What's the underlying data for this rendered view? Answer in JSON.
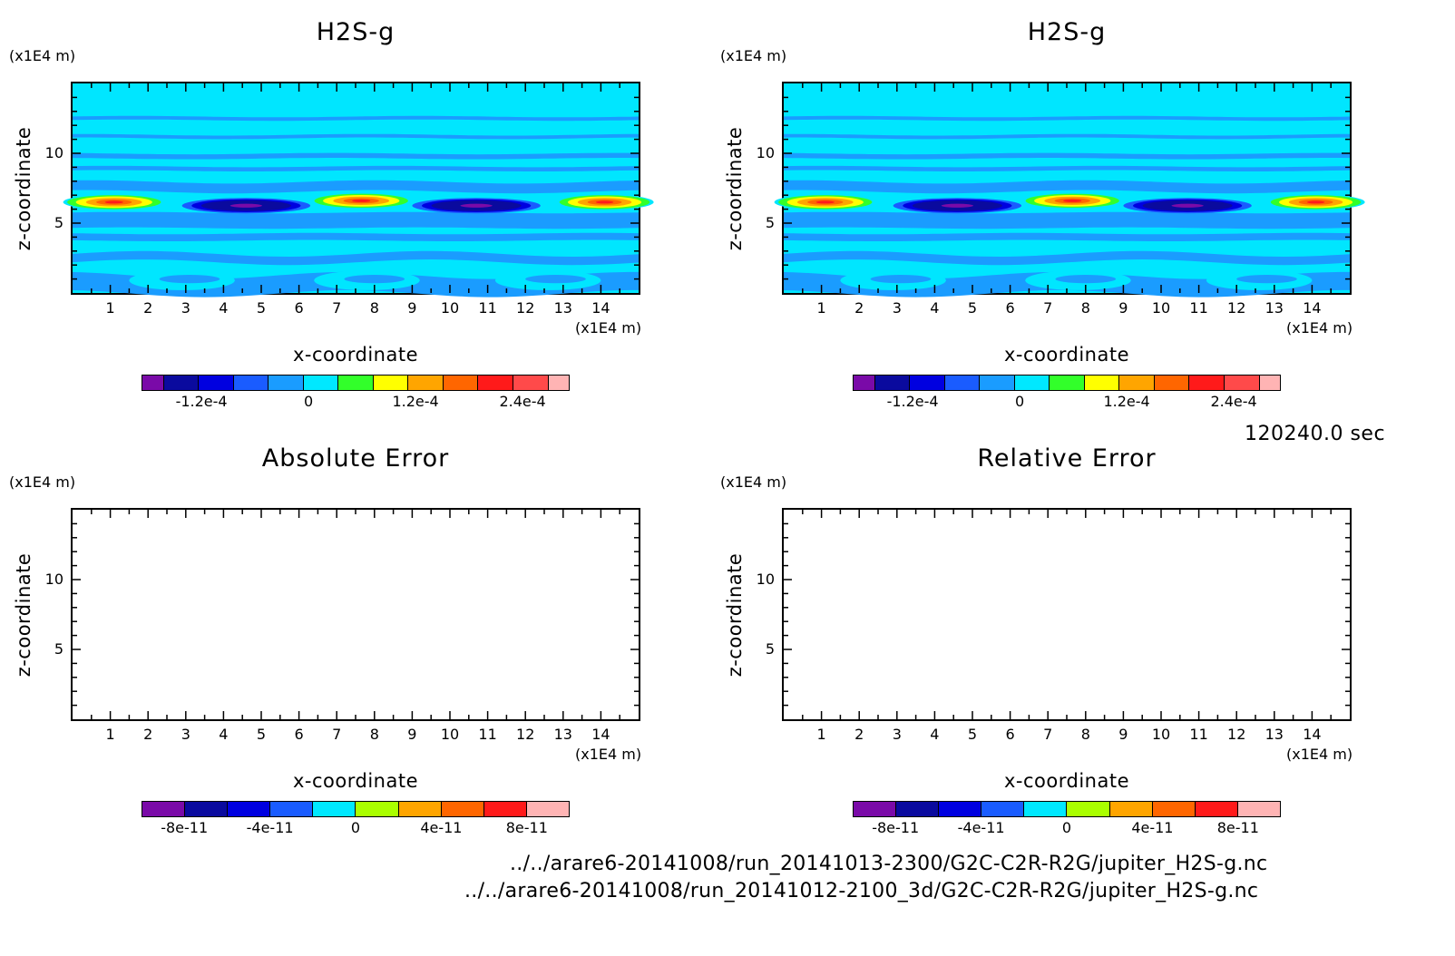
{
  "panels": [
    {
      "id": "tl",
      "title": "H2S-g",
      "zunit": "(x1E4 m)",
      "xunit": "(x1E4 m)",
      "ylabel": "z-coordinate",
      "xlabel": "x-coordinate",
      "filled": true,
      "colorbar": {
        "colors": [
          "#7a0aa8",
          "#0a0a9e",
          "#0000e0",
          "#1a5cff",
          "#1a9cff",
          "#00e8ff",
          "#32ff2a",
          "#ffff00",
          "#ffa500",
          "#ff6600",
          "#ff1a1a",
          "#ff4a4a",
          "#ffb4b4"
        ],
        "ticks": [
          "-1.2e-4",
          "0",
          "1.2e-4",
          "2.4e-4"
        ]
      }
    },
    {
      "id": "tr",
      "title": "H2S-g",
      "zunit": "(x1E4 m)",
      "xunit": "(x1E4 m)",
      "ylabel": "z-coordinate",
      "xlabel": "x-coordinate",
      "filled": true,
      "colorbar": {
        "colors": [
          "#7a0aa8",
          "#0a0a9e",
          "#0000e0",
          "#1a5cff",
          "#1a9cff",
          "#00e8ff",
          "#32ff2a",
          "#ffff00",
          "#ffa500",
          "#ff6600",
          "#ff1a1a",
          "#ff4a4a",
          "#ffb4b4"
        ],
        "ticks": [
          "-1.2e-4",
          "0",
          "1.2e-4",
          "2.4e-4"
        ]
      }
    },
    {
      "id": "bl",
      "title": "Absolute Error",
      "zunit": "(x1E4 m)",
      "xunit": "(x1E4 m)",
      "ylabel": "z-coordinate",
      "xlabel": "x-coordinate",
      "filled": false,
      "colorbar": {
        "colors": [
          "#7a0aa8",
          "#0a0a9e",
          "#0000e0",
          "#1a5cff",
          "#00e8ff",
          "#aaff00",
          "#ffa500",
          "#ff6600",
          "#ff1a1a",
          "#ffb4b4"
        ],
        "ticks": [
          "-8e-11",
          "-4e-11",
          "0",
          "4e-11",
          "8e-11"
        ]
      }
    },
    {
      "id": "br",
      "title": "Relative Error",
      "zunit": "(x1E4 m)",
      "xunit": "(x1E4 m)",
      "ylabel": "z-coordinate",
      "xlabel": "x-coordinate",
      "filled": false,
      "colorbar": {
        "colors": [
          "#7a0aa8",
          "#0a0a9e",
          "#0000e0",
          "#1a5cff",
          "#00e8ff",
          "#aaff00",
          "#ffa500",
          "#ff6600",
          "#ff1a1a",
          "#ffb4b4"
        ],
        "ticks": [
          "-8e-11",
          "-4e-11",
          "0",
          "4e-11",
          "8e-11"
        ]
      }
    }
  ],
  "time_label": "120240.0 sec",
  "files": [
    "../../arare6-20141008/run_20141013-2300/G2C-C2R-R2G/jupiter_H2S-g.nc",
    "../../arare6-20141008/run_20141012-2100_3d/G2C-C2R-R2G/jupiter_H2S-g.nc"
  ],
  "chart_data": [
    {
      "type": "heatmap",
      "title": "H2S-g",
      "xlabel": "x-coordinate",
      "ylabel": "z-coordinate",
      "x_unit": "(x1E4 m)",
      "z_unit": "(x1E4 m)",
      "xlim": [
        0,
        15
      ],
      "ylim": [
        0,
        15
      ],
      "x_ticks": [
        1,
        2,
        3,
        4,
        5,
        6,
        7,
        8,
        9,
        10,
        11,
        12,
        13,
        14
      ],
      "y_ticks": [
        5,
        10
      ],
      "colorbar_ticks": [
        "-1.2e-4",
        "0",
        "1.2e-4",
        "2.4e-4"
      ],
      "features": [
        {
          "kind": "positive_anomaly",
          "x_center": 1.2,
          "z": 6.5
        },
        {
          "kind": "negative_anomaly",
          "x_center": 4.5,
          "z": 6.3
        },
        {
          "kind": "positive_anomaly",
          "x_center": 7.6,
          "z": 6.6
        },
        {
          "kind": "negative_anomaly",
          "x_center": 10.7,
          "z": 6.3
        },
        {
          "kind": "positive_anomaly",
          "x_center": 14.0,
          "z": 6.5
        }
      ]
    },
    {
      "type": "heatmap",
      "title": "H2S-g",
      "xlabel": "x-coordinate",
      "ylabel": "z-coordinate",
      "x_unit": "(x1E4 m)",
      "z_unit": "(x1E4 m)",
      "xlim": [
        0,
        15
      ],
      "ylim": [
        0,
        15
      ],
      "x_ticks": [
        1,
        2,
        3,
        4,
        5,
        6,
        7,
        8,
        9,
        10,
        11,
        12,
        13,
        14
      ],
      "y_ticks": [
        5,
        10
      ],
      "colorbar_ticks": [
        "-1.2e-4",
        "0",
        "1.2e-4",
        "2.4e-4"
      ]
    },
    {
      "type": "heatmap",
      "title": "Absolute Error",
      "xlabel": "x-coordinate",
      "ylabel": "z-coordinate",
      "x_unit": "(x1E4 m)",
      "z_unit": "(x1E4 m)",
      "xlim": [
        0,
        15
      ],
      "ylim": [
        0,
        15
      ],
      "x_ticks": [
        1,
        2,
        3,
        4,
        5,
        6,
        7,
        8,
        9,
        10,
        11,
        12,
        13,
        14
      ],
      "y_ticks": [
        5,
        10
      ],
      "colorbar_ticks": [
        "-8e-11",
        "-4e-11",
        "0",
        "4e-11",
        "8e-11"
      ],
      "values": "blank"
    },
    {
      "type": "heatmap",
      "title": "Relative Error",
      "xlabel": "x-coordinate",
      "ylabel": "z-coordinate",
      "x_unit": "(x1E4 m)",
      "z_unit": "(x1E4 m)",
      "xlim": [
        0,
        15
      ],
      "ylim": [
        0,
        15
      ],
      "x_ticks": [
        1,
        2,
        3,
        4,
        5,
        6,
        7,
        8,
        9,
        10,
        11,
        12,
        13,
        14
      ],
      "y_ticks": [
        5,
        10
      ],
      "colorbar_ticks": [
        "-8e-11",
        "-4e-11",
        "0",
        "4e-11",
        "8e-11"
      ],
      "values": "blank"
    }
  ]
}
